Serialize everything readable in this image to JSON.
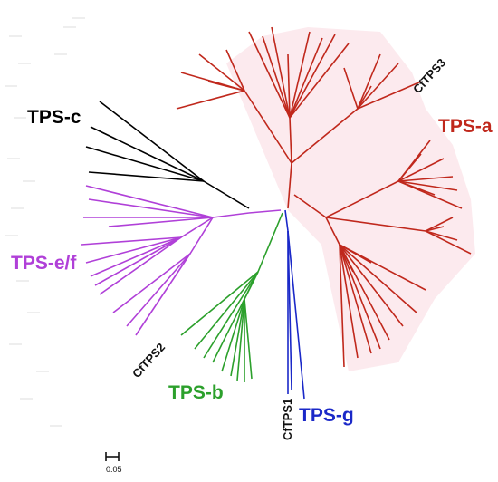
{
  "clades": {
    "tps_a": {
      "label": "TPS-a",
      "color": "#c0281c"
    },
    "tps_b": {
      "label": "TPS-b",
      "color": "#2ca02c"
    },
    "tps_c": {
      "label": "TPS-c",
      "color": "#000000"
    },
    "tps_ef": {
      "label": "TPS-e/f",
      "color": "#b040d8"
    },
    "tps_g": {
      "label": "TPS-g",
      "color": "#1a28c8"
    }
  },
  "genes": {
    "cftps1": "CfTPS1",
    "cftps2": "CfTPS2",
    "cftps3": "CfTPS3"
  },
  "scale_bar": {
    "label": "0.05"
  },
  "background_shading": "#fbe3e8"
}
